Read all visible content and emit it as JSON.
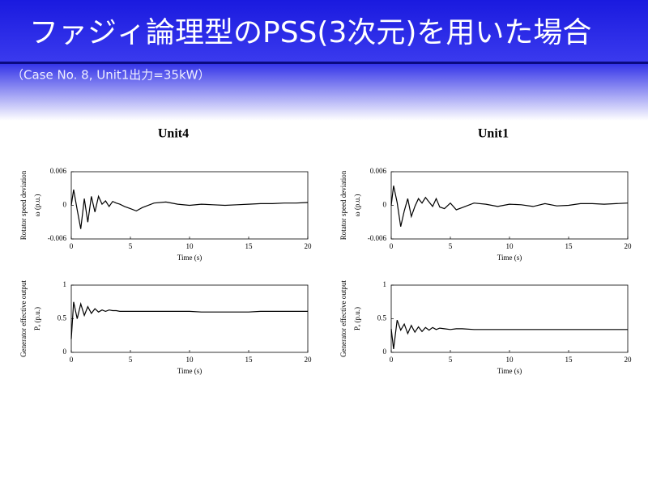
{
  "header": {
    "title": "ファジィ論理型のPSS(3次元)を用いた場合",
    "subtitle": "（Case No. 8, Unit1出力=35kW）"
  },
  "chart_data": [
    {
      "type": "line",
      "title": "Unit4",
      "ylabel": "Rotator speed deviation",
      "ylabel2": "ω (p.u.)",
      "xlabel": "Time (s)",
      "xlim": [
        0,
        20
      ],
      "xticks": [
        0,
        5,
        10,
        15,
        20
      ],
      "ylim": [
        -0.006,
        0.006
      ],
      "yticks": [
        -0.006,
        0,
        0.006
      ],
      "x": [
        0,
        0.2,
        0.5,
        0.8,
        1.1,
        1.4,
        1.7,
        2.0,
        2.3,
        2.6,
        2.9,
        3.2,
        3.5,
        3.8,
        4.1,
        4.5,
        5,
        5.5,
        6,
        7,
        8,
        9,
        10,
        11,
        12,
        13,
        14,
        15,
        16,
        17,
        18,
        19,
        20
      ],
      "series": [
        {
          "color": "#000000",
          "values": [
            0,
            0.0028,
            -0.0008,
            -0.0042,
            0.0012,
            -0.003,
            0.0016,
            -0.0012,
            0.0016,
            0.0002,
            0.0008,
            -0.0002,
            0.0007,
            0.0004,
            0.0002,
            -0.0002,
            -0.0006,
            -0.001,
            -0.0004,
            0.0004,
            0.0006,
            0.0002,
            0,
            0.0002,
            0.0001,
            0,
            0.0001,
            0.0002,
            0.0003,
            0.0003,
            0.0004,
            0.0004,
            0.0005
          ]
        }
      ]
    },
    {
      "type": "line",
      "title": "Unit1",
      "ylabel": "Rotator speed deviation",
      "ylabel2": "ω (p.u.)",
      "xlabel": "Time (s)",
      "xlim": [
        0,
        20
      ],
      "xticks": [
        0,
        5,
        10,
        15,
        20
      ],
      "ylim": [
        -0.006,
        0.006
      ],
      "yticks": [
        -0.006,
        0,
        0.006
      ],
      "x": [
        0,
        0.2,
        0.5,
        0.8,
        1.1,
        1.4,
        1.7,
        2.0,
        2.3,
        2.6,
        2.9,
        3.2,
        3.5,
        3.8,
        4.1,
        4.5,
        5,
        5.5,
        6,
        7,
        8,
        9,
        10,
        11,
        12,
        13,
        14,
        15,
        16,
        17,
        18,
        19,
        20
      ],
      "series": [
        {
          "color": "#000000",
          "values": [
            0,
            0.0035,
            0.0005,
            -0.0038,
            -0.001,
            0.0012,
            -0.002,
            -0.0002,
            0.0012,
            0.0004,
            0.0014,
            0.0006,
            -0.0002,
            0.0012,
            -0.0003,
            -0.0006,
            0.0004,
            -0.0008,
            -0.0004,
            0.0004,
            0.0002,
            -0.0002,
            0.0002,
            0.0001,
            -0.0002,
            0.0003,
            -0.0001,
            0,
            0.0003,
            0.0003,
            0.0002,
            0.0003,
            0.0004
          ]
        }
      ]
    },
    {
      "type": "line",
      "ylabel": "Generator effective output",
      "ylabel2": "Pₑ (p.u.)",
      "xlabel": "Time (s)",
      "xlim": [
        0,
        20
      ],
      "xticks": [
        0,
        5,
        10,
        15,
        20
      ],
      "ylim": [
        0,
        1
      ],
      "yticks": [
        0,
        0.5,
        1
      ],
      "x": [
        0,
        0.2,
        0.5,
        0.8,
        1.1,
        1.4,
        1.7,
        2.0,
        2.3,
        2.6,
        2.9,
        3.2,
        3.5,
        3.8,
        4.1,
        4.5,
        5,
        5.5,
        6,
        7,
        8,
        9,
        10,
        11,
        12,
        13,
        14,
        15,
        16,
        17,
        18,
        19,
        20
      ],
      "series": [
        {
          "color": "#000000",
          "values": [
            0.2,
            0.75,
            0.5,
            0.72,
            0.55,
            0.68,
            0.58,
            0.65,
            0.6,
            0.63,
            0.61,
            0.63,
            0.62,
            0.62,
            0.61,
            0.61,
            0.61,
            0.61,
            0.61,
            0.61,
            0.61,
            0.61,
            0.61,
            0.6,
            0.6,
            0.6,
            0.6,
            0.6,
            0.61,
            0.61,
            0.61,
            0.61,
            0.61
          ]
        }
      ]
    },
    {
      "type": "line",
      "ylabel": "Generator effective output",
      "ylabel2": "Pₑ (p.u.)",
      "xlabel": "Time (s)",
      "xlim": [
        0,
        20
      ],
      "xticks": [
        0,
        5,
        10,
        15,
        20
      ],
      "ylim": [
        0,
        1
      ],
      "yticks": [
        0,
        0.5,
        1
      ],
      "x": [
        0,
        0.2,
        0.5,
        0.8,
        1.1,
        1.4,
        1.7,
        2.0,
        2.3,
        2.6,
        2.9,
        3.2,
        3.5,
        3.8,
        4.1,
        4.5,
        5,
        5.5,
        6,
        7,
        8,
        9,
        10,
        11,
        12,
        13,
        14,
        15,
        16,
        17,
        18,
        19,
        20
      ],
      "series": [
        {
          "color": "#000000",
          "values": [
            0.35,
            0.05,
            0.48,
            0.33,
            0.42,
            0.28,
            0.4,
            0.3,
            0.38,
            0.31,
            0.37,
            0.33,
            0.37,
            0.34,
            0.36,
            0.35,
            0.34,
            0.35,
            0.35,
            0.34,
            0.34,
            0.34,
            0.34,
            0.34,
            0.34,
            0.34,
            0.34,
            0.34,
            0.34,
            0.34,
            0.34,
            0.34,
            0.34
          ]
        }
      ]
    }
  ]
}
